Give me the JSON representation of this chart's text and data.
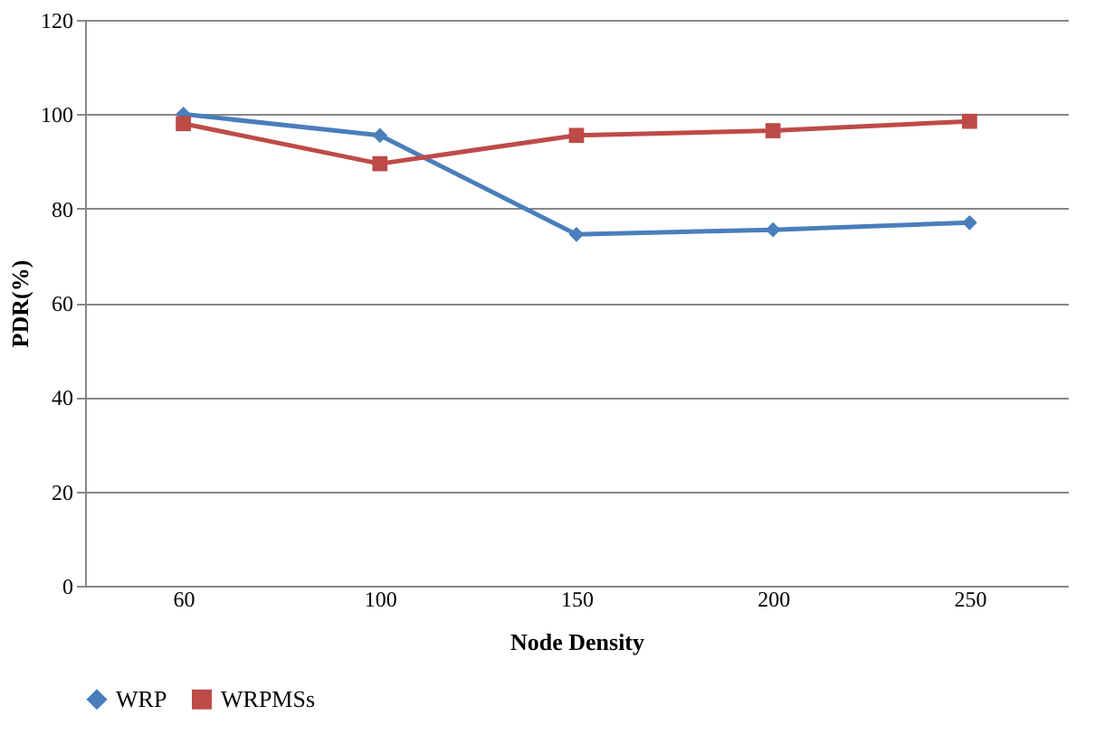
{
  "chart_data": {
    "type": "line",
    "xlabel": "Node Density",
    "ylabel": "PDR(%)",
    "categories": [
      "60",
      "100",
      "150",
      "200",
      "250"
    ],
    "series": [
      {
        "name": "WRP",
        "color": "#4a7ebb",
        "marker": "diamond",
        "values": [
          100,
          95.5,
          74.5,
          75.5,
          77
        ]
      },
      {
        "name": "WRPMSs",
        "color": "#be4b48",
        "marker": "square",
        "values": [
          98,
          89.5,
          95.5,
          96.5,
          98.5
        ]
      }
    ],
    "ylim": [
      0,
      120
    ],
    "yticks": [
      0,
      20,
      40,
      60,
      80,
      100,
      120
    ],
    "grid": "y",
    "legend": "bottom"
  }
}
